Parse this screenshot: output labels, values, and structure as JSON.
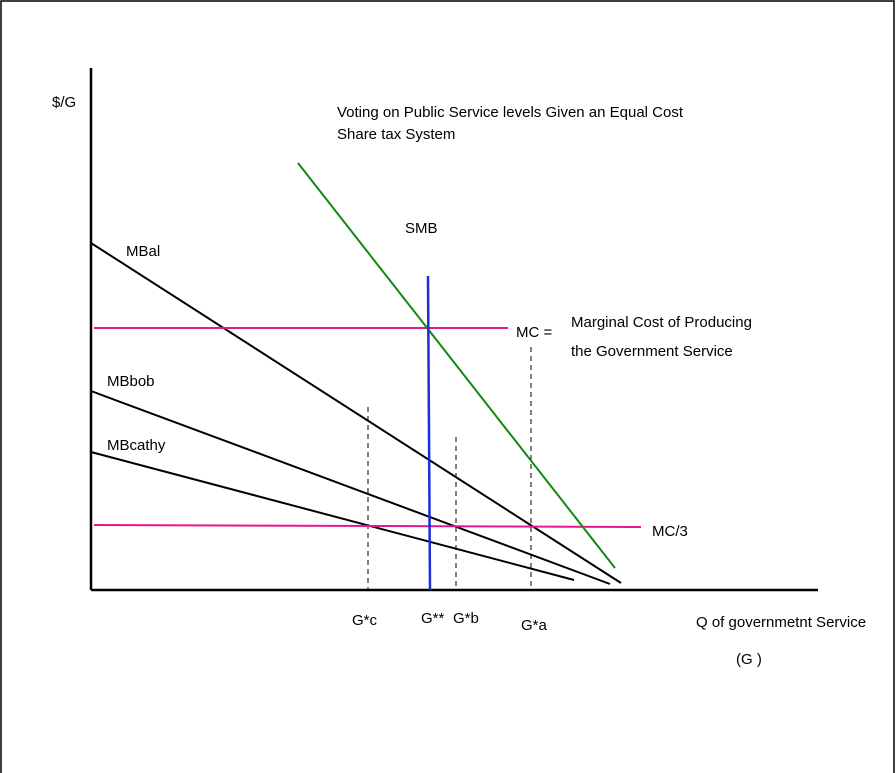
{
  "title_line1": "Voting on Public Service levels Given an Equal Cost",
  "title_line2": "Share tax System",
  "y_axis_label": "$/G",
  "x_axis_label": "Q of governmetnt Service",
  "x_axis_symbol": "(G  )",
  "curves": {
    "smb": "SMB",
    "mbal": "MBal",
    "mbbob": "MBbob",
    "mbcathy": "MBcathy",
    "mc": "MC =",
    "mc_desc_line1": "Marginal Cost of Producing",
    "mc_desc_line2": "the Government Service",
    "mc3": "MC/3"
  },
  "quantities": {
    "gc": "G*c",
    "gss": "G**",
    "gb": "G*b",
    "ga": "G*a"
  },
  "colors": {
    "mc_line": "#e8168c",
    "smb_line": "#108a10",
    "g_star_star_line": "#1a2fd6",
    "mb_lines": "#000000",
    "dashed_lines": "#000000"
  }
}
